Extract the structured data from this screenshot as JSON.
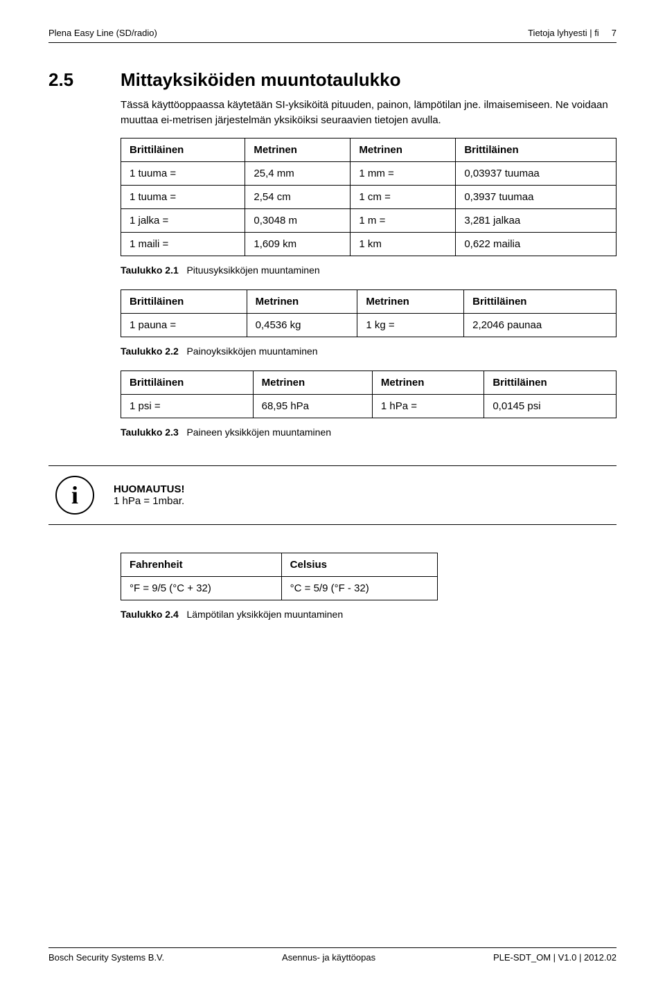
{
  "header": {
    "left": "Plena Easy Line (SD/radio)",
    "right": "Tietoja lyhyesti | fi",
    "page_no": "7"
  },
  "section": {
    "number": "2.5",
    "title": "Mittayksiköiden muuntotaulukko",
    "intro1": "Tässä käyttöoppaassa käytetään SI-yksiköitä pituuden, painon, lämpötilan jne. ilmaisemiseen.",
    "intro2": "Ne voidaan muuttaa ei-metrisen järjestelmän yksiköiksi seuraavien tietojen avulla."
  },
  "table1": {
    "headers": [
      "Brittiläinen",
      "Metrinen",
      "Metrinen",
      "Brittiläinen"
    ],
    "rows": [
      [
        "1 tuuma =",
        "25,4 mm",
        "1 mm =",
        "0,03937 tuumaa"
      ],
      [
        "1 tuuma =",
        "2,54 cm",
        "1 cm =",
        "0,3937 tuumaa"
      ],
      [
        "1 jalka =",
        "0,3048 m",
        "1 m =",
        "3,281 jalkaa"
      ],
      [
        "1 maili =",
        "1,609 km",
        "1 km",
        "0,622 mailia"
      ]
    ],
    "caption_label": "Taulukko 2.1",
    "caption_text": "Pituusyksikköjen muuntaminen"
  },
  "table2": {
    "headers": [
      "Brittiläinen",
      "Metrinen",
      "Metrinen",
      "Brittiläinen"
    ],
    "rows": [
      [
        "1 pauna =",
        "0,4536 kg",
        "1 kg =",
        "2,2046 paunaa"
      ]
    ],
    "caption_label": "Taulukko 2.2",
    "caption_text": "Painoyksikköjen muuntaminen"
  },
  "table3": {
    "headers": [
      "Brittiläinen",
      "Metrinen",
      "Metrinen",
      "Brittiläinen"
    ],
    "rows": [
      [
        "1 psi =",
        "68,95 hPa",
        "1 hPa =",
        "0,0145 psi"
      ]
    ],
    "caption_label": "Taulukko 2.3",
    "caption_text": "Paineen yksikköjen muuntaminen"
  },
  "notice": {
    "icon_glyph": "i",
    "title": "HUOMAUTUS!",
    "text": "1 hPa = 1mbar."
  },
  "table4": {
    "headers": [
      "Fahrenheit",
      "Celsius"
    ],
    "rows": [
      [
        "°F = 9/5 (°C + 32)",
        "°C = 5/9 (°F - 32)"
      ]
    ],
    "caption_label": "Taulukko 2.4",
    "caption_text": "Lämpötilan yksikköjen muuntaminen"
  },
  "footer": {
    "left": "Bosch Security Systems B.V.",
    "center": "Asennus- ja käyttöopas",
    "right": "PLE-SDT_OM | V1.0 | 2012.02"
  }
}
